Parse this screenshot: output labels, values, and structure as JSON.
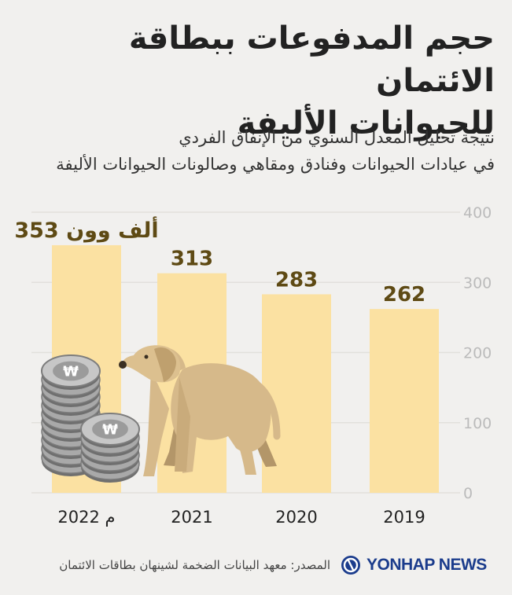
{
  "title_line1": "حجم المدفوعات ببطاقة الائتمان",
  "title_line2": "للحيوانات الأليفة",
  "subtitle_line1": "نتيجة تحليل المعدل السنوي من الإنفاق الفردي",
  "subtitle_line2": "في عيادات الحيوانات وفنادق ومقاهي وصالونات الحيوانات الأليفة",
  "source": "المصدر: معهد البيانات الضخمة لشينهان بطاقات الائتمان",
  "logo_text": "YONHAP NEWS",
  "colors": {
    "bar": "#fbe1a2",
    "value_label": "#5e4a14",
    "grid": "#e2e0dc",
    "tick": "#bbbbbb"
  },
  "chart_data": {
    "type": "bar",
    "categories": [
      "2022 م",
      "2021",
      "2020",
      "2019"
    ],
    "values": [
      353,
      313,
      283,
      262
    ],
    "value_labels": [
      "353 ألف وون",
      "313",
      "283",
      "262"
    ],
    "ylim": [
      0,
      400
    ],
    "yticks": [
      0,
      100,
      200,
      300,
      400
    ],
    "grid": true,
    "y_axis_side": "right"
  }
}
